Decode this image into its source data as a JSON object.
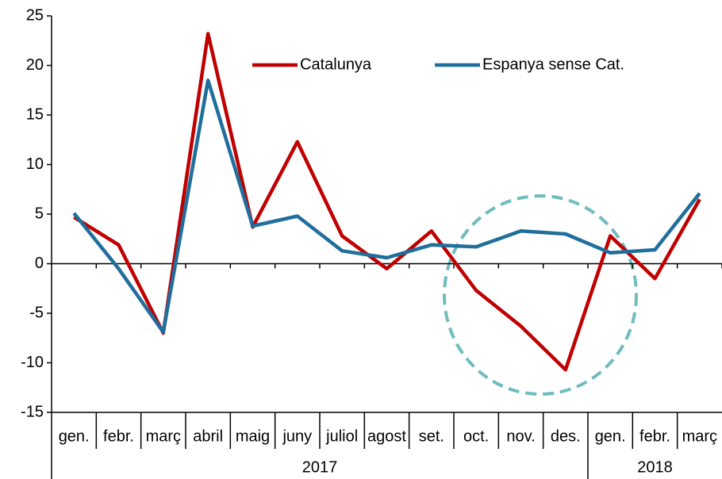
{
  "chart_data": {
    "type": "line",
    "categories": [
      "gen.",
      "febr.",
      "març",
      "abril",
      "maig",
      "juny",
      "juliol",
      "agost",
      "set.",
      "oct.",
      "nov.",
      "des.",
      "gen.",
      "febr.",
      "març"
    ],
    "category_groups": [
      {
        "label": "2017",
        "count": 12
      },
      {
        "label": "2018",
        "count": 3
      }
    ],
    "series": [
      {
        "name": "Catalunya",
        "color": "#c00000",
        "values": [
          4.7,
          1.9,
          -7.0,
          23.2,
          3.7,
          12.3,
          2.8,
          -0.5,
          3.3,
          -2.7,
          -6.3,
          -10.7,
          2.8,
          -1.5,
          6.5
        ]
      },
      {
        "name": "Espanya sense Cat.",
        "color": "#1f6e9c",
        "values": [
          5.1,
          -0.5,
          -6.9,
          18.5,
          3.8,
          4.8,
          1.3,
          0.6,
          1.9,
          1.7,
          3.3,
          3.0,
          1.1,
          1.4,
          7.1
        ]
      }
    ],
    "ylim": [
      -15,
      25
    ],
    "yticks": [
      -15,
      -10,
      -5,
      0,
      5,
      10,
      15,
      20,
      25
    ],
    "grid": false,
    "legend": "top"
  }
}
